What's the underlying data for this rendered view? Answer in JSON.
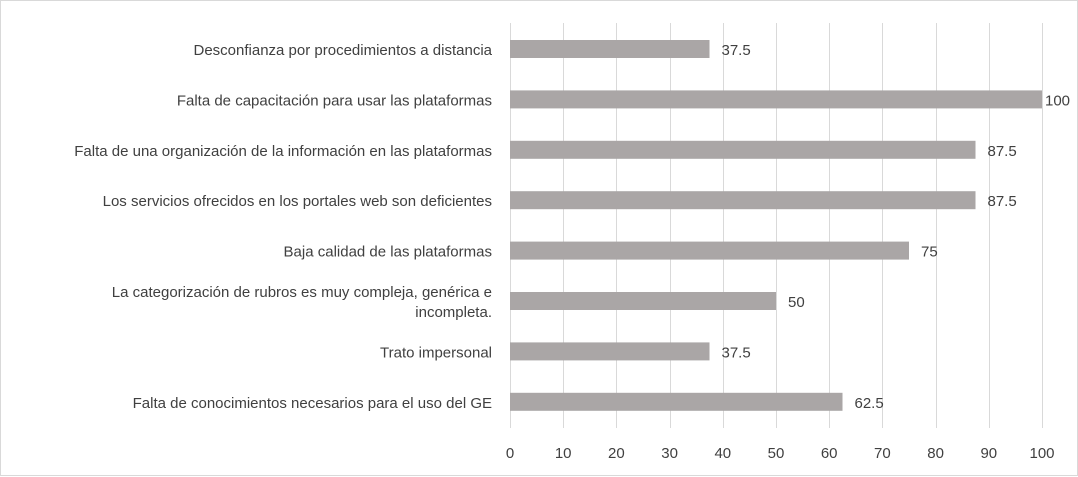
{
  "chart_data": {
    "type": "bar",
    "orientation": "horizontal",
    "title": "",
    "xlabel": "",
    "ylabel": "",
    "xlim": [
      0,
      100
    ],
    "x_ticks": [
      0,
      10,
      20,
      30,
      40,
      50,
      60,
      70,
      80,
      90,
      100
    ],
    "grid": "vertical",
    "legend": "none",
    "bar_color": "#aaa6a6",
    "categories": [
      [
        "Desconfianza  por procedimientos a distancia"
      ],
      [
        "Falta de capacitación para usar las plataformas"
      ],
      [
        "Falta de una organización de la información en las plataformas"
      ],
      [
        "Los servicios ofrecidos en los portales web son deficientes"
      ],
      [
        "Baja calidad de las plataformas"
      ],
      [
        "La categorización de rubros es muy compleja, genérica e",
        "incompleta."
      ],
      [
        "Trato impersonal"
      ],
      [
        "Falta de conocimientos necesarios para el uso del GE"
      ]
    ],
    "values": [
      37.5,
      100,
      87.5,
      87.5,
      75,
      50,
      37.5,
      62.5
    ],
    "value_labels": [
      "37.5",
      "100",
      "87.5",
      "87.5",
      "75",
      "50",
      "37.5",
      "62.5"
    ]
  }
}
